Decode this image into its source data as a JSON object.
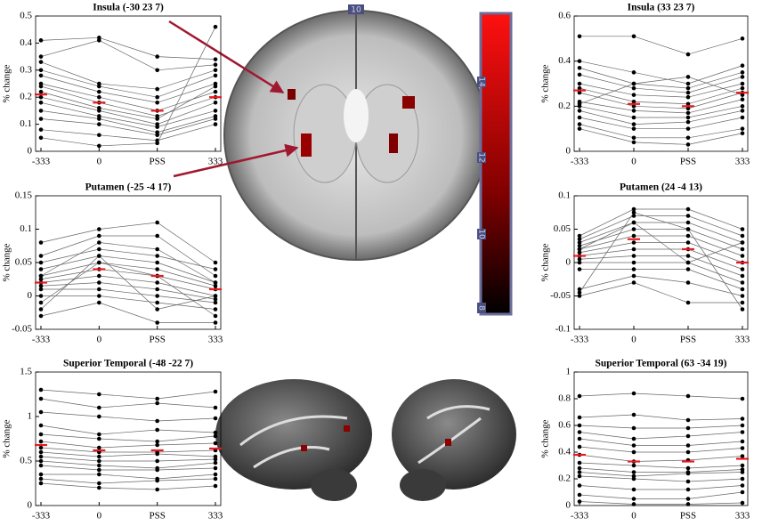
{
  "chart_data": [
    {
      "type": "line",
      "title": "Insula (-30 23 7)",
      "ylabel": "% change",
      "categories": [
        "-333",
        "0",
        "PSS",
        "333"
      ],
      "ylim": [
        0,
        0.5
      ],
      "yticks": [
        0,
        0.1,
        0.2,
        0.3,
        0.4,
        0.5
      ],
      "series": [
        {
          "color": "#666666",
          "values": [
            0.41,
            0.42,
            0.35,
            0.34
          ]
        },
        {
          "color": "#666666",
          "values": [
            0.35,
            0.41,
            0.3,
            0.32
          ]
        },
        {
          "color": "#666666",
          "values": [
            0.33,
            0.25,
            0.23,
            0.3
          ]
        },
        {
          "color": "#666666",
          "values": [
            0.3,
            0.24,
            0.2,
            0.28
          ]
        },
        {
          "color": "#666666",
          "values": [
            0.28,
            0.22,
            0.18,
            0.25
          ]
        },
        {
          "color": "#666666",
          "values": [
            0.25,
            0.2,
            0.15,
            0.22
          ]
        },
        {
          "color": "#666666",
          "values": [
            0.24,
            0.18,
            0.13,
            0.2
          ]
        },
        {
          "color": "#666666",
          "values": [
            0.22,
            0.16,
            0.12,
            0.24
          ]
        },
        {
          "color": "#666666",
          "values": [
            0.2,
            0.15,
            0.1,
            0.18
          ]
        },
        {
          "color": "#666666",
          "values": [
            0.18,
            0.13,
            0.09,
            0.15
          ]
        },
        {
          "color": "#666666",
          "values": [
            0.15,
            0.12,
            0.07,
            0.13
          ]
        },
        {
          "color": "#666666",
          "values": [
            0.12,
            0.1,
            0.06,
            0.12
          ]
        },
        {
          "color": "#666666",
          "values": [
            0.08,
            0.06,
            0.04,
            0.1
          ]
        },
        {
          "color": "#666666",
          "values": [
            0.05,
            0.02,
            0.03,
            0.46
          ]
        }
      ],
      "means": {
        "color": "#e8191f",
        "values": [
          0.21,
          0.18,
          0.15,
          0.2
        ]
      }
    },
    {
      "type": "line",
      "title": "Putamen (-25 -4 17)",
      "ylabel": "% change",
      "categories": [
        "-333",
        "0",
        "PSS",
        "333"
      ],
      "ylim": [
        -0.05,
        0.15
      ],
      "yticks": [
        -0.05,
        0,
        0.05,
        0.1,
        0.15
      ],
      "series": [
        {
          "color": "#666666",
          "values": [
            0.08,
            0.1,
            0.11,
            0.05
          ]
        },
        {
          "color": "#666666",
          "values": [
            0.06,
            0.09,
            0.09,
            0.03
          ]
        },
        {
          "color": "#666666",
          "values": [
            0.05,
            0.07,
            0.06,
            0.04
          ]
        },
        {
          "color": "#666666",
          "values": [
            0.04,
            0.06,
            0.05,
            0.02
          ]
        },
        {
          "color": "#666666",
          "values": [
            0.03,
            0.05,
            0.04,
            0.015
          ]
        },
        {
          "color": "#666666",
          "values": [
            0.025,
            0.04,
            0.03,
            0.01
          ]
        },
        {
          "color": "#666666",
          "values": [
            0.02,
            0.03,
            0.02,
            0
          ]
        },
        {
          "color": "#666666",
          "values": [
            0.015,
            0.02,
            0.01,
            -0.005
          ]
        },
        {
          "color": "#666666",
          "values": [
            0.01,
            0.01,
            0,
            -0.01
          ]
        },
        {
          "color": "#666666",
          "values": [
            0,
            0,
            -0.01,
            -0.02
          ]
        },
        {
          "color": "#666666",
          "values": [
            -0.01,
            0.05,
            0.03,
            -0.03
          ]
        },
        {
          "color": "#666666",
          "values": [
            -0.02,
            0.06,
            -0.02,
            0
          ]
        },
        {
          "color": "#666666",
          "values": [
            -0.03,
            -0.01,
            -0.04,
            -0.04
          ]
        },
        {
          "color": "#666666",
          "values": [
            0.03,
            0.08,
            0.07,
            0.02
          ]
        }
      ],
      "means": {
        "color": "#e8191f",
        "values": [
          0.02,
          0.04,
          0.03,
          0.01
        ]
      }
    },
    {
      "type": "line",
      "title": "Superior Temporal (-48 -22 7)",
      "ylabel": "% change",
      "categories": [
        "-333",
        "0",
        "PSS",
        "333"
      ],
      "ylim": [
        0,
        1.5
      ],
      "yticks": [
        0,
        0.5,
        1,
        1.5
      ],
      "series": [
        {
          "color": "#666666",
          "values": [
            1.3,
            1.25,
            1.2,
            1.28
          ]
        },
        {
          "color": "#666666",
          "values": [
            1.2,
            1.1,
            1.15,
            1.1
          ]
        },
        {
          "color": "#666666",
          "values": [
            1.05,
            1.0,
            0.95,
            0.98
          ]
        },
        {
          "color": "#666666",
          "values": [
            0.9,
            0.8,
            0.85,
            0.82
          ]
        },
        {
          "color": "#666666",
          "values": [
            0.8,
            0.75,
            0.72,
            0.78
          ]
        },
        {
          "color": "#666666",
          "values": [
            0.72,
            0.65,
            0.68,
            0.7
          ]
        },
        {
          "color": "#666666",
          "values": [
            0.65,
            0.6,
            0.6,
            0.62
          ]
        },
        {
          "color": "#666666",
          "values": [
            0.6,
            0.55,
            0.58,
            0.55
          ]
        },
        {
          "color": "#666666",
          "values": [
            0.55,
            0.5,
            0.5,
            0.52
          ]
        },
        {
          "color": "#666666",
          "values": [
            0.5,
            0.45,
            0.42,
            0.48
          ]
        },
        {
          "color": "#666666",
          "values": [
            0.45,
            0.4,
            0.4,
            0.42
          ]
        },
        {
          "color": "#666666",
          "values": [
            0.35,
            0.35,
            0.3,
            0.35
          ]
        },
        {
          "color": "#666666",
          "values": [
            0.3,
            0.25,
            0.28,
            0.3
          ]
        },
        {
          "color": "#666666",
          "values": [
            0.25,
            0.2,
            0.18,
            0.22
          ]
        }
      ],
      "means": {
        "color": "#e8191f",
        "values": [
          0.68,
          0.62,
          0.62,
          0.64
        ]
      }
    },
    {
      "type": "line",
      "title": "Insula (33 23 7)",
      "ylabel": "% change",
      "categories": [
        "-333",
        "0",
        "PSS",
        "333"
      ],
      "ylim": [
        0,
        0.6
      ],
      "yticks": [
        0,
        0.2,
        0.4,
        0.6
      ],
      "series": [
        {
          "color": "#666666",
          "values": [
            0.51,
            0.51,
            0.43,
            0.5
          ]
        },
        {
          "color": "#666666",
          "values": [
            0.4,
            0.35,
            0.3,
            0.38
          ]
        },
        {
          "color": "#666666",
          "values": [
            0.37,
            0.3,
            0.28,
            0.35
          ]
        },
        {
          "color": "#666666",
          "values": [
            0.34,
            0.28,
            0.26,
            0.33
          ]
        },
        {
          "color": "#666666",
          "values": [
            0.3,
            0.25,
            0.24,
            0.3
          ]
        },
        {
          "color": "#666666",
          "values": [
            0.28,
            0.22,
            0.21,
            0.28
          ]
        },
        {
          "color": "#666666",
          "values": [
            0.26,
            0.2,
            0.19,
            0.26
          ]
        },
        {
          "color": "#666666",
          "values": [
            0.22,
            0.18,
            0.17,
            0.23
          ]
        },
        {
          "color": "#666666",
          "values": [
            0.2,
            0.15,
            0.15,
            0.2
          ]
        },
        {
          "color": "#666666",
          "values": [
            0.18,
            0.12,
            0.13,
            0.18
          ]
        },
        {
          "color": "#666666",
          "values": [
            0.15,
            0.1,
            0.1,
            0.15
          ]
        },
        {
          "color": "#666666",
          "values": [
            0.12,
            0.06,
            0.06,
            0.1
          ]
        },
        {
          "color": "#666666",
          "values": [
            0.1,
            0.04,
            0.03,
            0.08
          ]
        },
        {
          "color": "#666666",
          "values": [
            0.21,
            0.3,
            0.33,
            0.25
          ]
        }
      ],
      "means": {
        "color": "#e8191f",
        "values": [
          0.27,
          0.21,
          0.2,
          0.26
        ]
      }
    },
    {
      "type": "line",
      "title": "Putamen (24 -4 13)",
      "ylabel": "% change",
      "categories": [
        "-333",
        "0",
        "PSS",
        "333"
      ],
      "ylim": [
        -0.1,
        0.1
      ],
      "yticks": [
        -0.1,
        -0.05,
        0,
        0.05,
        0.1
      ],
      "series": [
        {
          "color": "#666666",
          "values": [
            0.04,
            0.08,
            0.08,
            0.05
          ]
        },
        {
          "color": "#666666",
          "values": [
            0.035,
            0.07,
            0.07,
            0.04
          ]
        },
        {
          "color": "#666666",
          "values": [
            0.03,
            0.06,
            0.06,
            0.03
          ]
        },
        {
          "color": "#666666",
          "values": [
            0.025,
            0.05,
            0.05,
            0.02
          ]
        },
        {
          "color": "#666666",
          "values": [
            0.02,
            0.04,
            0.04,
            0.01
          ]
        },
        {
          "color": "#666666",
          "values": [
            0.015,
            0.03,
            0.03,
            0
          ]
        },
        {
          "color": "#666666",
          "values": [
            0.01,
            0.02,
            0.02,
            -0.01
          ]
        },
        {
          "color": "#666666",
          "values": [
            0.005,
            0.01,
            0.01,
            -0.02
          ]
        },
        {
          "color": "#666666",
          "values": [
            0,
            0,
            0,
            -0.03
          ]
        },
        {
          "color": "#666666",
          "values": [
            -0.01,
            -0.01,
            -0.01,
            -0.04
          ]
        },
        {
          "color": "#666666",
          "values": [
            -0.04,
            -0.02,
            -0.03,
            -0.05
          ]
        },
        {
          "color": "#666666",
          "values": [
            -0.05,
            -0.03,
            -0.06,
            -0.06
          ]
        },
        {
          "color": "#666666",
          "values": [
            0.02,
            0.06,
            0,
            0.03
          ]
        },
        {
          "color": "#666666",
          "values": [
            -0.045,
            0.075,
            0.05,
            -0.07
          ]
        }
      ],
      "means": {
        "color": "#e8191f",
        "values": [
          0.01,
          0.035,
          0.02,
          0
        ]
      }
    },
    {
      "type": "line",
      "title": "Superior Temporal (63 -34 19)",
      "ylabel": "% change",
      "categories": [
        "-333",
        "0",
        "PSS",
        "333"
      ],
      "ylim": [
        0,
        1
      ],
      "yticks": [
        0,
        0.2,
        0.4,
        0.6,
        0.8,
        1
      ],
      "series": [
        {
          "color": "#666666",
          "values": [
            0.82,
            0.84,
            0.82,
            0.8
          ]
        },
        {
          "color": "#666666",
          "values": [
            0.66,
            0.68,
            0.64,
            0.65
          ]
        },
        {
          "color": "#666666",
          "values": [
            0.6,
            0.58,
            0.58,
            0.6
          ]
        },
        {
          "color": "#666666",
          "values": [
            0.55,
            0.5,
            0.52,
            0.55
          ]
        },
        {
          "color": "#666666",
          "values": [
            0.5,
            0.45,
            0.45,
            0.48
          ]
        },
        {
          "color": "#666666",
          "values": [
            0.44,
            0.4,
            0.4,
            0.43
          ]
        },
        {
          "color": "#666666",
          "values": [
            0.38,
            0.33,
            0.34,
            0.37
          ]
        },
        {
          "color": "#666666",
          "values": [
            0.32,
            0.3,
            0.28,
            0.3
          ]
        },
        {
          "color": "#666666",
          "values": [
            0.28,
            0.25,
            0.25,
            0.27
          ]
        },
        {
          "color": "#666666",
          "values": [
            0.22,
            0.2,
            0.18,
            0.2
          ]
        },
        {
          "color": "#666666",
          "values": [
            0.15,
            0.12,
            0.12,
            0.15
          ]
        },
        {
          "color": "#666666",
          "values": [
            0.08,
            0.05,
            0.05,
            0.1
          ]
        },
        {
          "color": "#666666",
          "values": [
            0.03,
            0.01,
            0.01,
            0.02
          ]
        },
        {
          "color": "#666666",
          "values": [
            0.25,
            0.22,
            0.24,
            0.25
          ]
        }
      ],
      "means": {
        "color": "#e8191f",
        "values": [
          0.38,
          0.33,
          0.33,
          0.35
        ]
      }
    }
  ],
  "brain": {
    "slice_label": "10",
    "colorbar_ticks": [
      "14",
      "12",
      "10",
      "8"
    ]
  }
}
